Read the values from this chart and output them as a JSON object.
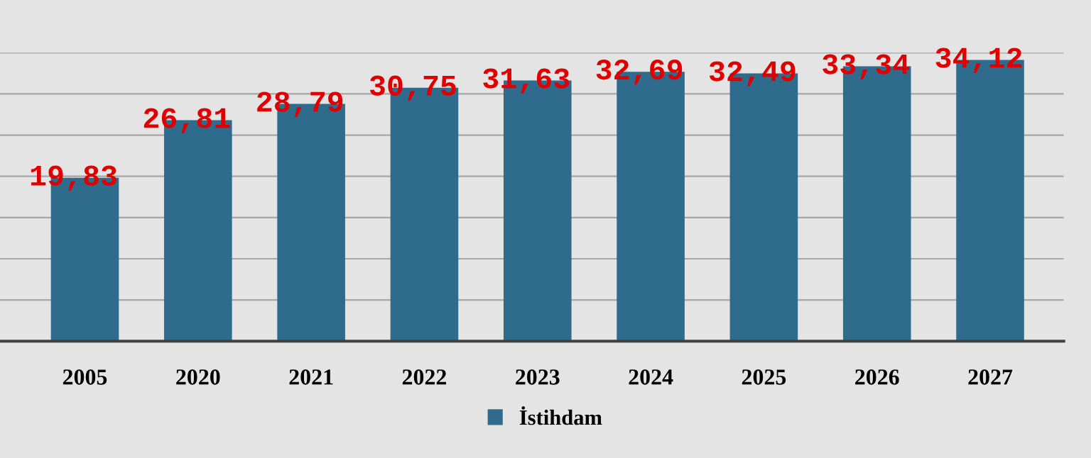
{
  "chart_data": {
    "type": "bar",
    "categories": [
      "2005",
      "2020",
      "2021",
      "2022",
      "2023",
      "2024",
      "2025",
      "2026",
      "2027"
    ],
    "series": [
      {
        "name": "İstihdam",
        "color": "#2f6b8c",
        "values": [
          19.83,
          26.81,
          28.79,
          30.75,
          31.63,
          32.69,
          32.49,
          33.34,
          34.12
        ],
        "value_labels": [
          "19,83",
          "26,81",
          "28,79",
          "30,75",
          "31,63",
          "32,69",
          "32,49",
          "33,34",
          "34,12"
        ]
      }
    ],
    "ylim": [
      0,
      35
    ],
    "yticks": [
      {
        "value": 0,
        "label": null
      },
      {
        "value": 5,
        "label": null
      },
      {
        "value": 10,
        "label": null
      },
      {
        "value": 15,
        "label": null
      },
      {
        "value": 20,
        "label": null
      },
      {
        "value": 25,
        "label": null
      },
      {
        "value": 30,
        "label": null
      },
      {
        "value": 35,
        "label": null
      }
    ],
    "grid": "y",
    "legend": "bottom",
    "tick_labels": "x"
  }
}
